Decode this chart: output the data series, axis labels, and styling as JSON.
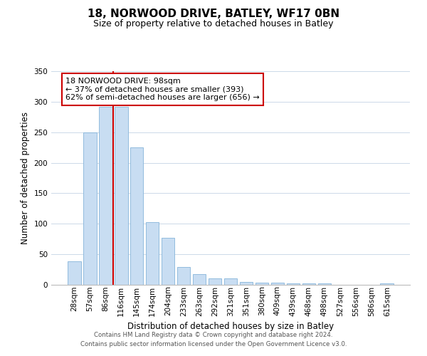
{
  "title": "18, NORWOOD DRIVE, BATLEY, WF17 0BN",
  "subtitle": "Size of property relative to detached houses in Batley",
  "xlabel": "Distribution of detached houses by size in Batley",
  "ylabel": "Number of detached properties",
  "categories": [
    "28sqm",
    "57sqm",
    "86sqm",
    "116sqm",
    "145sqm",
    "174sqm",
    "204sqm",
    "233sqm",
    "263sqm",
    "292sqm",
    "321sqm",
    "351sqm",
    "380sqm",
    "409sqm",
    "439sqm",
    "468sqm",
    "498sqm",
    "527sqm",
    "556sqm",
    "586sqm",
    "615sqm"
  ],
  "values": [
    39,
    250,
    292,
    292,
    225,
    103,
    77,
    29,
    18,
    10,
    10,
    5,
    4,
    4,
    2,
    2,
    2,
    0,
    0,
    0,
    2
  ],
  "bar_color": "#c8ddf2",
  "bar_edge_color": "#85b4d9",
  "vline_color": "#cc0000",
  "vline_x_index": 2.5,
  "ylim": [
    0,
    350
  ],
  "yticks": [
    0,
    50,
    100,
    150,
    200,
    250,
    300,
    350
  ],
  "annotation_title": "18 NORWOOD DRIVE: 98sqm",
  "annotation_line1": "← 37% of detached houses are smaller (393)",
  "annotation_line2": "62% of semi-detached houses are larger (656) →",
  "annotation_box_color": "#ffffff",
  "annotation_box_edge": "#cc0000",
  "footer_line1": "Contains HM Land Registry data © Crown copyright and database right 2024.",
  "footer_line2": "Contains public sector information licensed under the Open Government Licence v3.0.",
  "background_color": "#ffffff",
  "grid_color": "#ccd9e8",
  "title_fontsize": 11,
  "subtitle_fontsize": 9,
  "ylabel_fontsize": 8.5,
  "xlabel_fontsize": 8.5,
  "tick_fontsize": 7.5,
  "ann_fontsize": 8
}
